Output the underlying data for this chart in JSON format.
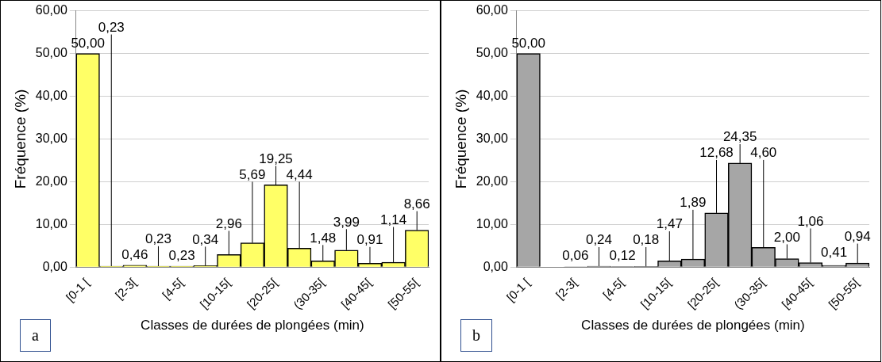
{
  "chart_data": [
    {
      "type": "bar",
      "xlabel": "Classes de durées de plongées (min)",
      "ylabel": "Fréquence (%)",
      "annotations": [
        "a"
      ],
      "categories": [
        "[0-1 [",
        null,
        "[2-3[",
        null,
        "[4-5[",
        null,
        "[10-15[",
        null,
        "[20-25[",
        null,
        "(30-35[",
        null,
        "[40-45[",
        null,
        "[50-55["
      ],
      "values": [
        50,
        0.23,
        0.46,
        0.23,
        0.23,
        0.34,
        2.96,
        5.69,
        19.25,
        4.44,
        1.48,
        3.99,
        0.91,
        1.14,
        8.66
      ],
      "value_labels": [
        "50,00",
        "0,23",
        "0,46",
        "0,23",
        "0,23",
        "0,34",
        "2,96",
        "5,69",
        "19,25",
        "4,44",
        "1,48",
        "3,99",
        "0,91",
        "1,14",
        "8,66"
      ],
      "color": "#ffff66",
      "ylim": [
        0,
        60
      ],
      "yticks": [
        {
          "value": 0,
          "label": "0,00"
        },
        {
          "value": 10,
          "label": "10,00"
        },
        {
          "value": 20,
          "label": "20,00"
        },
        {
          "value": 30,
          "label": "30,00"
        },
        {
          "value": 40,
          "label": "40,00"
        },
        {
          "value": 50,
          "label": "50,00"
        },
        {
          "value": 60,
          "label": "60,00"
        }
      ],
      "grid": "y"
    },
    {
      "type": "bar",
      "xlabel": "Classes de durées de plongées (min)",
      "ylabel": "Fréquence (%)",
      "annotations": [
        "b"
      ],
      "categories": [
        "[0-1 [",
        null,
        "[2-3[",
        null,
        "[4-5[",
        null,
        "[10-15[",
        null,
        "[20-25[",
        null,
        "(30-35[",
        null,
        "[40-45[",
        null,
        "[50-55["
      ],
      "values": [
        50,
        null,
        0.06,
        0.24,
        0.12,
        0.18,
        1.47,
        1.89,
        12.68,
        24.35,
        4.6,
        2,
        1.06,
        0.41,
        0.94
      ],
      "value_labels": [
        "50,00",
        null,
        "0,06",
        "0,24",
        "0,12",
        "0,18",
        "1,47",
        "1,89",
        "12,68",
        "24,35",
        "4,60",
        "2,00",
        "1,06",
        "0,41",
        "0,94"
      ],
      "color": "#a6a6a6",
      "ylim": [
        0,
        60
      ],
      "yticks": [
        {
          "value": 0,
          "label": "0,00"
        },
        {
          "value": 10,
          "label": "10,00"
        },
        {
          "value": 20,
          "label": "20,00"
        },
        {
          "value": 30,
          "label": "30,00"
        },
        {
          "value": 40,
          "label": "40,00"
        },
        {
          "value": 50,
          "label": "50,00"
        },
        {
          "value": 60,
          "label": "60,00"
        }
      ],
      "grid": "y"
    }
  ]
}
